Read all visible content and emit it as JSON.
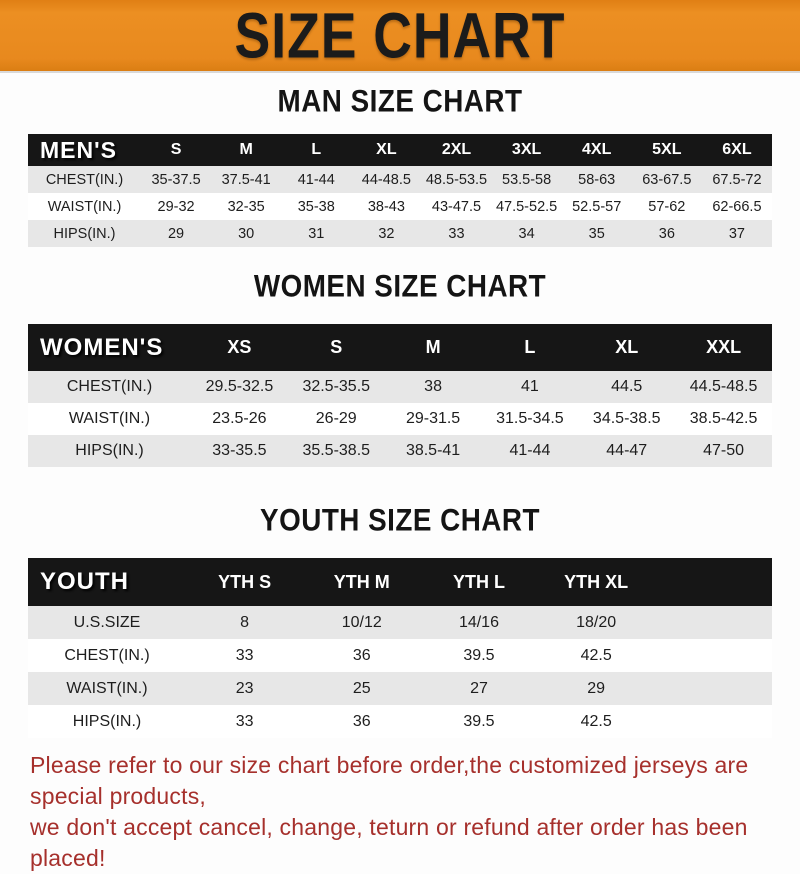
{
  "banner": {
    "title": "SIZE CHART",
    "bg_color": "#E8891E",
    "text_color": "#1B1B1B"
  },
  "sections": [
    {
      "title": "MAN SIZE CHART",
      "table": {
        "header": [
          "MEN'S",
          "S",
          "M",
          "L",
          "XL",
          "2XL",
          "3XL",
          "4XL",
          "5XL",
          "6XL"
        ],
        "rows": [
          [
            "CHEST(IN.)",
            "35-37.5",
            "37.5-41",
            "41-44",
            "44-48.5",
            "48.5-53.5",
            "53.5-58",
            "58-63",
            "63-67.5",
            "67.5-72"
          ],
          [
            "WAIST(IN.)",
            "29-32",
            "32-35",
            "35-38",
            "38-43",
            "43-47.5",
            "47.5-52.5",
            "52.5-57",
            "57-62",
            "62-66.5"
          ],
          [
            "HIPS(IN.)",
            "29",
            "30",
            "31",
            "32",
            "33",
            "34",
            "35",
            "36",
            "37"
          ]
        ]
      }
    },
    {
      "title": "WOMEN SIZE CHART",
      "table": {
        "header": [
          "WOMEN'S",
          "XS",
          "S",
          "M",
          "L",
          "XL",
          "XXL"
        ],
        "rows": [
          [
            "CHEST(IN.)",
            "29.5-32.5",
            "32.5-35.5",
            "38",
            "41",
            "44.5",
            "44.5-48.5"
          ],
          [
            "WAIST(IN.)",
            "23.5-26",
            "26-29",
            "29-31.5",
            "31.5-34.5",
            "34.5-38.5",
            "38.5-42.5"
          ],
          [
            "HIPS(IN.)",
            "33-35.5",
            "35.5-38.5",
            "38.5-41",
            "41-44",
            "44-47",
            "47-50"
          ]
        ]
      }
    },
    {
      "title": "YOUTH SIZE CHART",
      "table": {
        "header": [
          "YOUTH",
          "YTH S",
          "YTH M",
          "YTH L",
          "YTH XL"
        ],
        "rows": [
          [
            "U.S.SIZE",
            "8",
            "10/12",
            "14/16",
            "18/20"
          ],
          [
            "CHEST(IN.)",
            "33",
            "36",
            "39.5",
            "42.5"
          ],
          [
            "WAIST(IN.)",
            "23",
            "25",
            "27",
            "29"
          ],
          [
            "HIPS(IN.)",
            "33",
            "36",
            "39.5",
            "42.5"
          ]
        ]
      }
    }
  ],
  "footer": {
    "line1": "Please refer to our size chart before order,the customized jerseys are special products,",
    "line2": "we don't accept cancel, change, teturn or refund after order has been placed!",
    "text_color": "#A6302C"
  },
  "colors": {
    "table_header_bg": "#161616",
    "stripe_row_bg": "#E7E7E7",
    "body_bg": "#FDFDFD"
  }
}
